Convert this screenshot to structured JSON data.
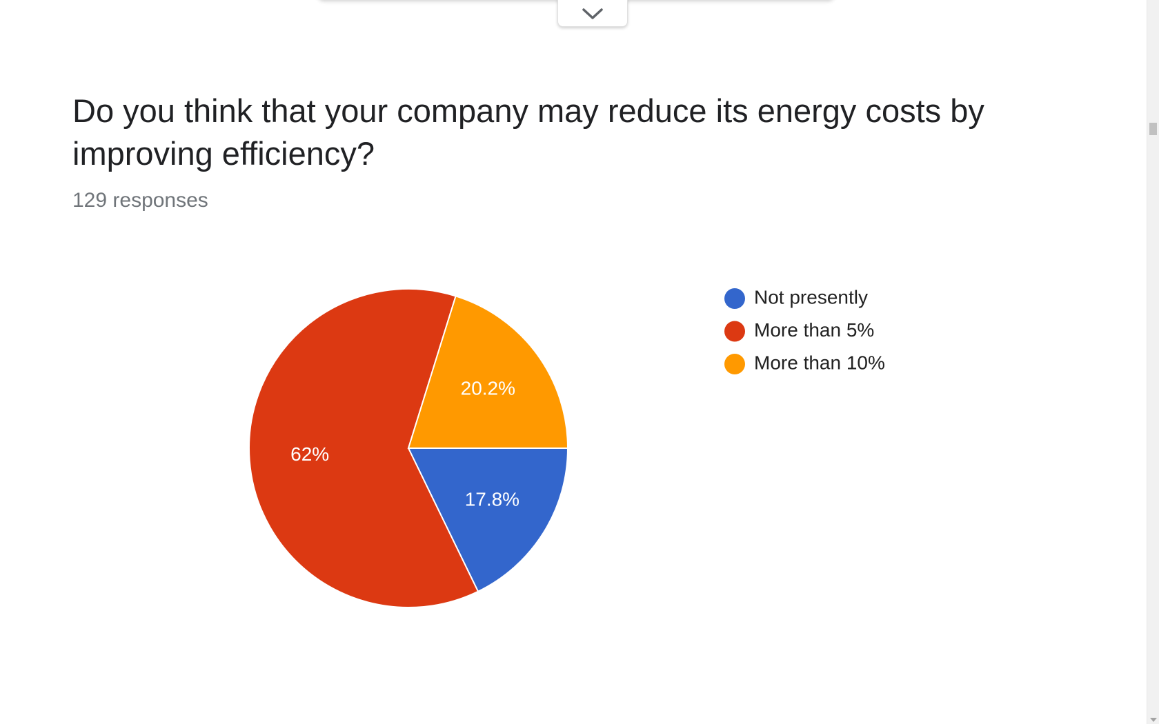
{
  "question": {
    "title": "Do you think that your company may reduce its energy costs by improving efficiency?",
    "responses": "129 responses"
  },
  "chart_data": {
    "type": "pie",
    "slices": [
      {
        "label": "Not presently",
        "value": 17.8,
        "display": "17.8%",
        "color": "#3366cc"
      },
      {
        "label": "More than 5%",
        "value": 62.0,
        "display": "62%",
        "color": "#dc3912"
      },
      {
        "label": "More than 10%",
        "value": 20.2,
        "display": "20.2%",
        "color": "#ff9900"
      }
    ],
    "legend_position": "right",
    "start_angle_deg": 90,
    "direction": "clockwise"
  },
  "icons": {
    "collapse": "chevron-down-icon"
  }
}
